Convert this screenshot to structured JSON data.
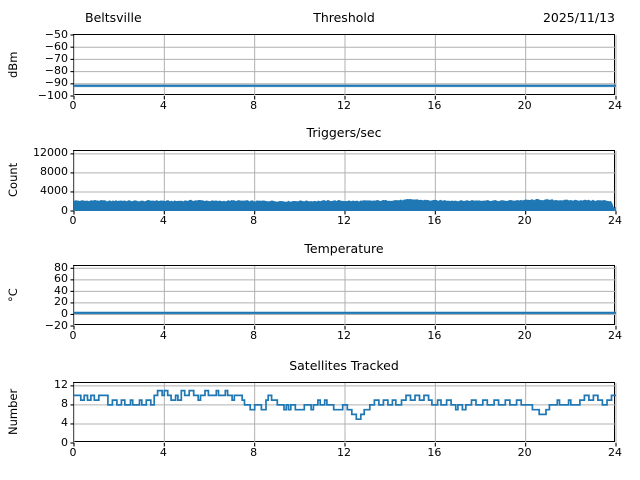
{
  "colors": {
    "line": "#1f77b4",
    "band": "#9dc3de",
    "grid": "#b0b0b0",
    "axis": "#000000",
    "background": "#ffffff"
  },
  "header": {
    "station": "Beltsville",
    "date": "2025/11/13"
  },
  "chart_data": [
    {
      "type": "line",
      "title": "Threshold",
      "title_left": "Beltsville",
      "title_right": "2025/11/13",
      "ylabel": "dBm",
      "xlim": [
        0,
        24
      ],
      "xticks": [
        0,
        4,
        8,
        12,
        16,
        20,
        24
      ],
      "ylim": [
        -100,
        -50
      ],
      "yticks": [
        -50,
        -60,
        -70,
        -80,
        -90,
        -100
      ],
      "grid": true,
      "value": -91.6,
      "band": [
        -92.8,
        -90.6
      ]
    },
    {
      "type": "noisy_fill",
      "title": "Triggers/sec",
      "ylabel": "Count",
      "xlim": [
        0,
        24
      ],
      "xticks": [
        0,
        4,
        8,
        12,
        16,
        20,
        24
      ],
      "ylim": [
        0,
        12600
      ],
      "yticks": [
        0,
        4000,
        8000,
        12000
      ],
      "grid": true,
      "baseline": 0,
      "noise_amp": 140,
      "top_edge": [
        [
          0,
          2200
        ],
        [
          0.5,
          2150
        ],
        [
          1,
          2250
        ],
        [
          1.5,
          2100
        ],
        [
          2,
          2200
        ],
        [
          2.5,
          2150
        ],
        [
          3,
          2100
        ],
        [
          3.5,
          2200
        ],
        [
          4,
          2150
        ],
        [
          4.5,
          2100
        ],
        [
          5,
          2200
        ],
        [
          5.5,
          2250
        ],
        [
          6,
          2150
        ],
        [
          6.5,
          2100
        ],
        [
          7,
          2200
        ],
        [
          7.5,
          2150
        ],
        [
          8,
          2100
        ],
        [
          8.5,
          2150
        ],
        [
          9,
          2100
        ],
        [
          9.5,
          2050
        ],
        [
          10,
          2150
        ],
        [
          10.5,
          2100
        ],
        [
          11,
          2150
        ],
        [
          11.5,
          2200
        ],
        [
          12,
          2150
        ],
        [
          12.5,
          2100
        ],
        [
          13,
          2150
        ],
        [
          13.5,
          2200
        ],
        [
          14,
          2250
        ],
        [
          14.5,
          2300
        ],
        [
          15,
          2450
        ],
        [
          15.5,
          2300
        ],
        [
          16,
          2200
        ],
        [
          16.5,
          2250
        ],
        [
          17,
          2150
        ],
        [
          17.5,
          2200
        ],
        [
          18,
          2250
        ],
        [
          18.5,
          2200
        ],
        [
          19,
          2150
        ],
        [
          19.5,
          2250
        ],
        [
          20,
          2300
        ],
        [
          20.5,
          2400
        ],
        [
          21,
          2350
        ],
        [
          21.5,
          2300
        ],
        [
          22,
          2250
        ],
        [
          22.5,
          2300
        ],
        [
          23,
          2250
        ],
        [
          23.5,
          2200
        ],
        [
          23.8,
          2100
        ],
        [
          23.92,
          600
        ],
        [
          24,
          900
        ]
      ]
    },
    {
      "type": "line",
      "title": "Temperature",
      "ylabel": "°C",
      "xlim": [
        0,
        24
      ],
      "xticks": [
        0,
        4,
        8,
        12,
        16,
        20,
        24
      ],
      "ylim": [
        -20,
        84
      ],
      "yticks": [
        -20,
        0,
        20,
        40,
        60,
        80
      ],
      "grid": true,
      "value": 2.8,
      "band": [
        0.6,
        5.0
      ]
    },
    {
      "type": "step",
      "title": "Satellites Tracked",
      "ylabel": "Number",
      "xlim": [
        0,
        24
      ],
      "xticks": [
        0,
        4,
        8,
        12,
        16,
        20,
        24
      ],
      "ylim": [
        0,
        12.6
      ],
      "yticks": [
        0,
        4,
        8,
        12
      ],
      "grid": true,
      "steps": [
        [
          0,
          10
        ],
        [
          0.3,
          9
        ],
        [
          0.45,
          10
        ],
        [
          0.6,
          9
        ],
        [
          0.75,
          10
        ],
        [
          0.9,
          9
        ],
        [
          1.1,
          10
        ],
        [
          1.5,
          8
        ],
        [
          1.7,
          9
        ],
        [
          1.9,
          8
        ],
        [
          2.1,
          9
        ],
        [
          2.25,
          8
        ],
        [
          2.5,
          9
        ],
        [
          2.6,
          8
        ],
        [
          2.9,
          9
        ],
        [
          3.0,
          8
        ],
        [
          3.2,
          9
        ],
        [
          3.4,
          8
        ],
        [
          3.55,
          10
        ],
        [
          3.7,
          11
        ],
        [
          3.9,
          10
        ],
        [
          4.0,
          11
        ],
        [
          4.15,
          10
        ],
        [
          4.3,
          9
        ],
        [
          4.5,
          10
        ],
        [
          4.6,
          9
        ],
        [
          4.75,
          11
        ],
        [
          4.9,
          10
        ],
        [
          5.1,
          11
        ],
        [
          5.3,
          10
        ],
        [
          5.5,
          9
        ],
        [
          5.6,
          10
        ],
        [
          5.8,
          11
        ],
        [
          5.95,
          10
        ],
        [
          6.3,
          11
        ],
        [
          6.4,
          10
        ],
        [
          6.7,
          11
        ],
        [
          6.8,
          10
        ],
        [
          7.0,
          9
        ],
        [
          7.1,
          10
        ],
        [
          7.45,
          9
        ],
        [
          7.55,
          8
        ],
        [
          7.8,
          7
        ],
        [
          8.0,
          8
        ],
        [
          8.3,
          7
        ],
        [
          8.5,
          9
        ],
        [
          8.6,
          10
        ],
        [
          8.75,
          9
        ],
        [
          9.0,
          8
        ],
        [
          9.3,
          7
        ],
        [
          9.4,
          8
        ],
        [
          9.5,
          7
        ],
        [
          9.6,
          8
        ],
        [
          9.8,
          7
        ],
        [
          10.2,
          8
        ],
        [
          10.5,
          7
        ],
        [
          10.6,
          8
        ],
        [
          10.8,
          9
        ],
        [
          10.9,
          8
        ],
        [
          11.1,
          9
        ],
        [
          11.2,
          8
        ],
        [
          11.5,
          7
        ],
        [
          11.9,
          8
        ],
        [
          12.1,
          7
        ],
        [
          12.3,
          6
        ],
        [
          12.5,
          5
        ],
        [
          12.7,
          6
        ],
        [
          12.85,
          7
        ],
        [
          13.1,
          8
        ],
        [
          13.3,
          9
        ],
        [
          13.5,
          8
        ],
        [
          13.7,
          9
        ],
        [
          13.9,
          8
        ],
        [
          14.1,
          9
        ],
        [
          14.25,
          8
        ],
        [
          14.5,
          9
        ],
        [
          14.7,
          10
        ],
        [
          14.9,
          9
        ],
        [
          15.1,
          10
        ],
        [
          15.3,
          9
        ],
        [
          15.5,
          10
        ],
        [
          15.7,
          9
        ],
        [
          15.85,
          8
        ],
        [
          16.1,
          9
        ],
        [
          16.25,
          8
        ],
        [
          16.5,
          9
        ],
        [
          16.7,
          8
        ],
        [
          16.9,
          7
        ],
        [
          17.0,
          8
        ],
        [
          17.2,
          7
        ],
        [
          17.35,
          8
        ],
        [
          17.6,
          9
        ],
        [
          17.8,
          8
        ],
        [
          18.1,
          9
        ],
        [
          18.3,
          8
        ],
        [
          18.6,
          9
        ],
        [
          18.8,
          8
        ],
        [
          19.1,
          9
        ],
        [
          19.3,
          8
        ],
        [
          19.6,
          9
        ],
        [
          19.8,
          8
        ],
        [
          20.3,
          7
        ],
        [
          20.6,
          6
        ],
        [
          20.9,
          7
        ],
        [
          21.05,
          8
        ],
        [
          21.4,
          9
        ],
        [
          21.5,
          8
        ],
        [
          21.9,
          9
        ],
        [
          22.0,
          8
        ],
        [
          22.4,
          9
        ],
        [
          22.6,
          10
        ],
        [
          22.8,
          9
        ],
        [
          23.0,
          10
        ],
        [
          23.2,
          9
        ],
        [
          23.4,
          8
        ],
        [
          23.6,
          9
        ],
        [
          23.8,
          10
        ],
        [
          24,
          10
        ]
      ]
    }
  ]
}
